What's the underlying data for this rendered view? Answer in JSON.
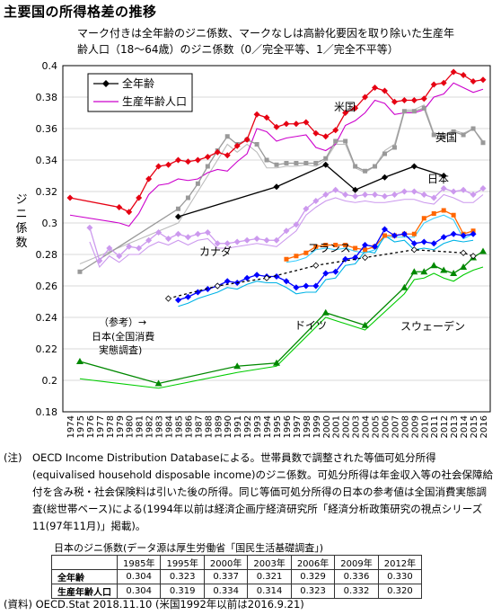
{
  "title": "主要国の所得格差の推移",
  "chart_data": {
    "type": "line",
    "subtitle_lines": [
      "マーク付きは全年齢のジニ係数、マークなしは高齢化要因を取り除いた生産年",
      "齢人口（18～64歳）のジニ係数（0／完全平等、1／完全不平等）"
    ],
    "ylabel": "ジニ係数",
    "ylim": [
      0.18,
      0.4
    ],
    "yticks": [
      "0.18",
      "0.2",
      "0.22",
      "0.24",
      "0.26",
      "0.28",
      "0.3",
      "0.32",
      "0.34",
      "0.36",
      "0.38",
      "0.4"
    ],
    "xlim": [
      1974,
      2016
    ],
    "xticks": [
      "1974",
      "1975",
      "1976",
      "1977",
      "1978",
      "1979",
      "1980",
      "1981",
      "1982",
      "1983",
      "1984",
      "1985",
      "1986",
      "1987",
      "1988",
      "1989",
      "1990",
      "1991",
      "1992",
      "1993",
      "1994",
      "1995",
      "1996",
      "1997",
      "1998",
      "1999",
      "2000",
      "2001",
      "2002",
      "2003",
      "2004",
      "2005",
      "2006",
      "2007",
      "2008",
      "2009",
      "2010",
      "2011",
      "2012",
      "2013",
      "2014",
      "2015",
      "2016"
    ],
    "legend": {
      "placement": "top-left",
      "entries": [
        "全年齢",
        "生産年齢人口"
      ]
    },
    "annotations": {
      "us": "米国",
      "uk": "英国",
      "japan": "日本",
      "canada": "カナダ",
      "france": "フランス",
      "germany": "ドイツ",
      "sweden": "スウェーデン",
      "japan_ref_1": "（参考）→",
      "japan_ref_2": "日本(全国消費",
      "japan_ref_3": "実態調査)"
    },
    "series": [
      {
        "id": "us_all",
        "color": "#e60012",
        "marker": "diamond",
        "x": [
          1974,
          1979,
          1980,
          1981,
          1982,
          1983,
          1984,
          1985,
          1986,
          1987,
          1988,
          1989,
          1990,
          1991,
          1992,
          1993,
          1994,
          1995,
          1996,
          1997,
          1998,
          1999,
          2000,
          2001,
          2002,
          2003,
          2004,
          2005,
          2006,
          2007,
          2008,
          2009,
          2010,
          2011,
          2012,
          2013,
          2014,
          2015,
          2016
        ],
        "y": [
          0.316,
          0.31,
          0.307,
          0.316,
          0.328,
          0.336,
          0.337,
          0.34,
          0.339,
          0.34,
          0.342,
          0.345,
          0.343,
          0.349,
          0.353,
          0.369,
          0.367,
          0.361,
          0.363,
          0.363,
          0.364,
          0.357,
          0.355,
          0.359,
          0.37,
          0.373,
          0.38,
          0.386,
          0.384,
          0.377,
          0.378,
          0.378,
          0.379,
          0.388,
          0.389,
          0.396,
          0.394,
          0.39,
          0.391
        ]
      },
      {
        "id": "us_wa",
        "color": "#cc00cc",
        "marker": "none",
        "x": [
          1974,
          1979,
          1980,
          1981,
          1982,
          1983,
          1984,
          1985,
          1986,
          1987,
          1988,
          1989,
          1990,
          1991,
          1992,
          1993,
          1994,
          1995,
          1996,
          1997,
          1998,
          1999,
          2000,
          2001,
          2002,
          2003,
          2004,
          2005,
          2006,
          2007,
          2008,
          2009,
          2010,
          2011,
          2012,
          2013,
          2014,
          2015,
          2016
        ],
        "y": [
          0.305,
          0.3,
          0.298,
          0.306,
          0.318,
          0.324,
          0.325,
          0.328,
          0.327,
          0.328,
          0.332,
          0.334,
          0.333,
          0.339,
          0.344,
          0.36,
          0.358,
          0.352,
          0.354,
          0.355,
          0.356,
          0.348,
          0.346,
          0.35,
          0.362,
          0.365,
          0.37,
          0.378,
          0.376,
          0.369,
          0.37,
          0.37,
          0.372,
          0.38,
          0.382,
          0.389,
          0.386,
          0.383,
          0.385
        ]
      },
      {
        "id": "uk_all",
        "color": "#999999",
        "marker": "square",
        "x": [
          1975,
          1985,
          1986,
          1987,
          1988,
          1989,
          1990,
          1991,
          1992,
          1993,
          1994,
          1995,
          1996,
          1997,
          1998,
          1999,
          2000,
          2001,
          2002,
          2003,
          2004,
          2005,
          2006,
          2007,
          2008,
          2009,
          2010,
          2011,
          2012,
          2013,
          2014,
          2015,
          2016
        ],
        "y": [
          0.269,
          0.309,
          0.316,
          0.325,
          0.336,
          0.346,
          0.355,
          0.35,
          0.353,
          0.35,
          0.34,
          0.337,
          0.338,
          0.338,
          0.338,
          0.338,
          0.341,
          0.352,
          0.352,
          0.336,
          0.333,
          0.336,
          0.344,
          0.348,
          0.371,
          0.371,
          0.373,
          0.356,
          0.355,
          0.358,
          0.356,
          0.36,
          0.351
        ]
      },
      {
        "id": "uk_wa",
        "color": "#bbbbbb",
        "marker": "none",
        "x": [
          1975,
          1985,
          1986,
          1987,
          1988,
          1989,
          1990,
          1991,
          1992,
          1993,
          1994,
          1995,
          1996,
          1997,
          1998,
          1999,
          2000,
          2001,
          2002,
          2003,
          2004,
          2005,
          2006,
          2007,
          2008,
          2009,
          2010,
          2011,
          2012,
          2013,
          2014,
          2015,
          2016
        ],
        "y": [
          0.274,
          0.3,
          0.31,
          0.32,
          0.33,
          0.34,
          0.35,
          0.345,
          0.35,
          0.345,
          0.335,
          0.335,
          0.336,
          0.336,
          0.337,
          0.336,
          0.34,
          0.35,
          0.35,
          0.335,
          0.332,
          0.336,
          0.346,
          0.35,
          0.372,
          0.372,
          0.375,
          0.357,
          0.356,
          0.359,
          0.357,
          0.36,
          0.352
        ]
      },
      {
        "id": "japan_all",
        "color": "#000000",
        "marker": "diamond",
        "x": [
          1985,
          1995,
          2000,
          2003,
          2006,
          2009,
          2012
        ],
        "y": [
          0.304,
          0.323,
          0.337,
          0.321,
          0.329,
          0.336,
          0.33
        ]
      },
      {
        "id": "canada_all",
        "color": "#cc99ee",
        "marker": "diamond",
        "x": [
          1976,
          1977,
          1978,
          1979,
          1980,
          1981,
          1982,
          1983,
          1984,
          1985,
          1986,
          1987,
          1988,
          1989,
          1990,
          1991,
          1992,
          1993,
          1994,
          1995,
          1996,
          1997,
          1998,
          1999,
          2000,
          2001,
          2002,
          2003,
          2004,
          2005,
          2006,
          2007,
          2008,
          2009,
          2010,
          2011,
          2012,
          2013,
          2014,
          2015,
          2016
        ],
        "y": [
          0.297,
          0.276,
          0.284,
          0.279,
          0.285,
          0.284,
          0.289,
          0.294,
          0.29,
          0.293,
          0.291,
          0.293,
          0.294,
          0.287,
          0.287,
          0.288,
          0.289,
          0.29,
          0.289,
          0.289,
          0.295,
          0.299,
          0.309,
          0.314,
          0.318,
          0.321,
          0.318,
          0.317,
          0.318,
          0.318,
          0.317,
          0.318,
          0.32,
          0.32,
          0.318,
          0.316,
          0.322,
          0.32,
          0.321,
          0.318,
          0.322
        ]
      },
      {
        "id": "canada_wa",
        "color": "#cc99ee",
        "marker": "none",
        "x": [
          1976,
          1977,
          1978,
          1979,
          1980,
          1981,
          1982,
          1983,
          1984,
          1985,
          1986,
          1987,
          1988,
          1989,
          1990,
          1991,
          1992,
          1993,
          1994,
          1995,
          1996,
          1997,
          1998,
          1999,
          2000,
          2001,
          2002,
          2003,
          2004,
          2005,
          2006,
          2007,
          2008,
          2009,
          2010,
          2011,
          2012,
          2013,
          2014,
          2015,
          2016
        ],
        "y": [
          0.288,
          0.272,
          0.279,
          0.275,
          0.28,
          0.28,
          0.285,
          0.288,
          0.286,
          0.289,
          0.286,
          0.289,
          0.29,
          0.284,
          0.284,
          0.285,
          0.286,
          0.287,
          0.286,
          0.285,
          0.29,
          0.295,
          0.305,
          0.31,
          0.314,
          0.316,
          0.314,
          0.313,
          0.314,
          0.313,
          0.313,
          0.314,
          0.315,
          0.315,
          0.313,
          0.312,
          0.318,
          0.316,
          0.313,
          0.313,
          0.318
        ]
      },
      {
        "id": "france_all",
        "color": "#ff6600",
        "marker": "square",
        "x": [
          1996,
          1997,
          1998,
          1999,
          2000,
          2001,
          2002,
          2003,
          2004,
          2005,
          2006,
          2007,
          2008,
          2009,
          2010,
          2011,
          2012,
          2013,
          2014,
          2015
        ],
        "y": [
          0.277,
          0.279,
          0.281,
          0.285,
          0.286,
          0.286,
          0.286,
          0.284,
          0.283,
          0.285,
          0.292,
          0.292,
          0.293,
          0.293,
          0.303,
          0.306,
          0.308,
          0.305,
          0.293,
          0.295
        ]
      },
      {
        "id": "france_wa",
        "color": "#33ccff",
        "marker": "none",
        "x": [
          1996,
          1997,
          1998,
          1999,
          2000,
          2001,
          2002,
          2003,
          2004,
          2005,
          2006,
          2007,
          2008,
          2009,
          2010,
          2011,
          2012,
          2013,
          2014,
          2015
        ],
        "y": [
          0.275,
          0.276,
          0.278,
          0.283,
          0.284,
          0.283,
          0.284,
          0.282,
          0.281,
          0.283,
          0.291,
          0.291,
          0.291,
          0.291,
          0.3,
          0.303,
          0.305,
          0.302,
          0.29,
          0.293
        ]
      },
      {
        "id": "germany_all",
        "color": "#0000ff",
        "marker": "diamond",
        "x": [
          1985,
          1986,
          1987,
          1988,
          1989,
          1990,
          1991,
          1992,
          1993,
          1994,
          1995,
          1996,
          1997,
          1998,
          1999,
          2000,
          2001,
          2002,
          2003,
          2004,
          2005,
          2006,
          2007,
          2008,
          2009,
          2010,
          2011,
          2012,
          2013,
          2014,
          2015
        ],
        "y": [
          0.251,
          0.253,
          0.256,
          0.258,
          0.26,
          0.263,
          0.262,
          0.265,
          0.267,
          0.266,
          0.266,
          0.263,
          0.259,
          0.26,
          0.26,
          0.268,
          0.269,
          0.277,
          0.278,
          0.286,
          0.285,
          0.296,
          0.292,
          0.293,
          0.287,
          0.288,
          0.287,
          0.291,
          0.293,
          0.292,
          0.293
        ]
      },
      {
        "id": "germany_wa",
        "color": "#00b3e6",
        "marker": "none",
        "x": [
          1985,
          1986,
          1987,
          1988,
          1989,
          1990,
          1991,
          1992,
          1993,
          1994,
          1995,
          1996,
          1997,
          1998,
          1999,
          2000,
          2001,
          2002,
          2003,
          2004,
          2005,
          2006,
          2007,
          2008,
          2009,
          2010,
          2011,
          2012,
          2013,
          2014,
          2015
        ],
        "y": [
          0.247,
          0.249,
          0.252,
          0.254,
          0.256,
          0.259,
          0.258,
          0.261,
          0.263,
          0.262,
          0.262,
          0.259,
          0.255,
          0.256,
          0.256,
          0.264,
          0.265,
          0.273,
          0.274,
          0.282,
          0.281,
          0.292,
          0.288,
          0.289,
          0.283,
          0.284,
          0.283,
          0.287,
          0.289,
          0.288,
          0.289
        ]
      },
      {
        "id": "japan_ref",
        "color": "#000000",
        "marker": "open-diamond",
        "dashed": true,
        "x": [
          1984,
          1989,
          1994,
          1999,
          2004,
          2009,
          2014,
          2015
        ],
        "y": [
          0.252,
          0.26,
          0.265,
          0.273,
          0.278,
          0.283,
          0.281,
          0.279
        ]
      },
      {
        "id": "sweden_all",
        "color": "#008800",
        "marker": "triangle",
        "x": [
          1975,
          1983,
          1991,
          1995,
          2000,
          2004,
          2008,
          2009,
          2010,
          2011,
          2012,
          2013,
          2014,
          2015,
          2016
        ],
        "y": [
          0.212,
          0.198,
          0.209,
          0.211,
          0.243,
          0.235,
          0.259,
          0.269,
          0.269,
          0.273,
          0.27,
          0.268,
          0.272,
          0.278,
          0.282
        ]
      },
      {
        "id": "sweden_wa",
        "color": "#00cc00",
        "marker": "none",
        "x": [
          1975,
          1983,
          1991,
          1995,
          2000,
          2004,
          2008,
          2009,
          2010,
          2011,
          2012,
          2013,
          2014,
          2015,
          2016
        ],
        "y": [
          0.201,
          0.195,
          0.205,
          0.209,
          0.24,
          0.232,
          0.255,
          0.264,
          0.265,
          0.268,
          0.265,
          0.263,
          0.267,
          0.27,
          0.272
        ]
      }
    ]
  },
  "notes": {
    "label": "(注)",
    "text": "OECD Income Distribution Databaseによる。世帯員数で調整された等価可処分所得(equivalised household disposable income)のジニ係数。可処分所得は年金収入等の社会保障給付を含み税・社会保険料は引いた後の所得。同じ等価可処分所得の日本の参考値は全国消費実態調査(総世帯ベース)による(1994年以前は経済企画庁経済研究所「経済分析政策研究の視点シリーズ11(97年11月)」掲載)。"
  },
  "japan_table": {
    "title": "日本のジニ係数(データ源は厚生労働省「国民生活基礎調査」)",
    "headers": [
      "1985年",
      "1995年",
      "2000年",
      "2003年",
      "2006年",
      "2009年",
      "2012年"
    ],
    "rows": [
      {
        "label": "全年齢",
        "values": [
          "0.304",
          "0.323",
          "0.337",
          "0.321",
          "0.329",
          "0.336",
          "0.330"
        ]
      },
      {
        "label": "生産年齢人口",
        "values": [
          "0.304",
          "0.319",
          "0.334",
          "0.314",
          "0.323",
          "0.332",
          "0.320"
        ]
      }
    ]
  },
  "source": "(資料) OECD.Stat 2018.11.10 (米国1992年以前は2016.9.21)"
}
